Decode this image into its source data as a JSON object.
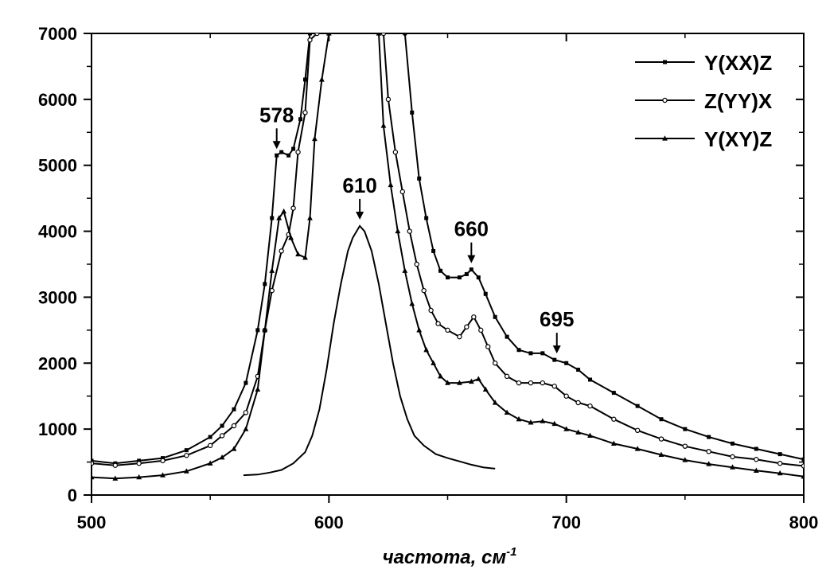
{
  "chart_data": {
    "type": "line",
    "title": "",
    "xlabel": "частота, см",
    "xlabel_sup": "-1",
    "ylabel": "",
    "xlim": [
      500,
      800
    ],
    "ylim": [
      0,
      7000
    ],
    "xticks": [
      500,
      600,
      700,
      800
    ],
    "yticks": [
      0,
      1000,
      2000,
      3000,
      4000,
      5000,
      6000,
      7000
    ],
    "grid": false,
    "legend_position": "top-right",
    "series": [
      {
        "name": "Y(XX)Z",
        "marker": "square",
        "color": "#000000",
        "points": [
          [
            500,
            520
          ],
          [
            510,
            480
          ],
          [
            520,
            520
          ],
          [
            530,
            560
          ],
          [
            540,
            680
          ],
          [
            550,
            880
          ],
          [
            555,
            1050
          ],
          [
            560,
            1300
          ],
          [
            565,
            1700
          ],
          [
            570,
            2500
          ],
          [
            573,
            3200
          ],
          [
            576,
            4200
          ],
          [
            578,
            5150
          ],
          [
            580,
            5200
          ],
          [
            583,
            5150
          ],
          [
            585,
            5250
          ],
          [
            588,
            5700
          ],
          [
            590,
            6300
          ],
          [
            592,
            7000
          ],
          [
            632,
            7000
          ],
          [
            635,
            5800
          ],
          [
            638,
            4800
          ],
          [
            641,
            4200
          ],
          [
            644,
            3700
          ],
          [
            647,
            3400
          ],
          [
            650,
            3300
          ],
          [
            655,
            3300
          ],
          [
            658,
            3350
          ],
          [
            660,
            3420
          ],
          [
            663,
            3300
          ],
          [
            666,
            3050
          ],
          [
            670,
            2700
          ],
          [
            675,
            2400
          ],
          [
            680,
            2200
          ],
          [
            685,
            2150
          ],
          [
            690,
            2150
          ],
          [
            695,
            2050
          ],
          [
            700,
            2000
          ],
          [
            705,
            1900
          ],
          [
            710,
            1750
          ],
          [
            720,
            1550
          ],
          [
            730,
            1350
          ],
          [
            740,
            1150
          ],
          [
            750,
            1000
          ],
          [
            760,
            880
          ],
          [
            770,
            780
          ],
          [
            780,
            700
          ],
          [
            790,
            620
          ],
          [
            800,
            540
          ]
        ]
      },
      {
        "name": "Z(YY)X",
        "marker": "circle",
        "color": "#000000",
        "points": [
          [
            500,
            480
          ],
          [
            510,
            450
          ],
          [
            520,
            480
          ],
          [
            530,
            520
          ],
          [
            540,
            600
          ],
          [
            550,
            750
          ],
          [
            555,
            900
          ],
          [
            560,
            1050
          ],
          [
            565,
            1250
          ],
          [
            570,
            1800
          ],
          [
            573,
            2500
          ],
          [
            576,
            3100
          ],
          [
            580,
            3700
          ],
          [
            583,
            3950
          ],
          [
            585,
            4350
          ],
          [
            587,
            5200
          ],
          [
            590,
            5800
          ],
          [
            592,
            6900
          ],
          [
            595,
            7000
          ],
          [
            623,
            7000
          ],
          [
            625,
            6000
          ],
          [
            628,
            5200
          ],
          [
            631,
            4600
          ],
          [
            634,
            4000
          ],
          [
            637,
            3500
          ],
          [
            640,
            3100
          ],
          [
            643,
            2800
          ],
          [
            646,
            2600
          ],
          [
            650,
            2500
          ],
          [
            655,
            2400
          ],
          [
            658,
            2550
          ],
          [
            661,
            2700
          ],
          [
            664,
            2500
          ],
          [
            667,
            2250
          ],
          [
            670,
            2000
          ],
          [
            675,
            1800
          ],
          [
            680,
            1700
          ],
          [
            685,
            1700
          ],
          [
            690,
            1700
          ],
          [
            695,
            1650
          ],
          [
            700,
            1500
          ],
          [
            705,
            1400
          ],
          [
            710,
            1350
          ],
          [
            720,
            1150
          ],
          [
            730,
            980
          ],
          [
            740,
            850
          ],
          [
            750,
            740
          ],
          [
            760,
            660
          ],
          [
            770,
            580
          ],
          [
            780,
            540
          ],
          [
            790,
            480
          ],
          [
            800,
            440
          ]
        ]
      },
      {
        "name": "Y(XY)Z",
        "marker": "triangle",
        "color": "#000000",
        "points": [
          [
            500,
            270
          ],
          [
            510,
            250
          ],
          [
            520,
            270
          ],
          [
            530,
            300
          ],
          [
            540,
            360
          ],
          [
            550,
            480
          ],
          [
            555,
            570
          ],
          [
            560,
            700
          ],
          [
            565,
            1000
          ],
          [
            570,
            1600
          ],
          [
            573,
            2500
          ],
          [
            576,
            3400
          ],
          [
            579,
            4200
          ],
          [
            581,
            4300
          ],
          [
            584,
            3900
          ],
          [
            587,
            3650
          ],
          [
            590,
            3600
          ],
          [
            592,
            4200
          ],
          [
            594,
            5400
          ],
          [
            597,
            6300
          ],
          [
            600,
            7000
          ],
          [
            621,
            7000
          ],
          [
            623,
            5600
          ],
          [
            626,
            4700
          ],
          [
            629,
            4000
          ],
          [
            632,
            3400
          ],
          [
            635,
            2900
          ],
          [
            638,
            2500
          ],
          [
            641,
            2200
          ],
          [
            644,
            2000
          ],
          [
            647,
            1800
          ],
          [
            650,
            1700
          ],
          [
            655,
            1700
          ],
          [
            660,
            1720
          ],
          [
            663,
            1760
          ],
          [
            666,
            1600
          ],
          [
            670,
            1400
          ],
          [
            675,
            1250
          ],
          [
            680,
            1150
          ],
          [
            685,
            1100
          ],
          [
            690,
            1120
          ],
          [
            695,
            1080
          ],
          [
            700,
            1000
          ],
          [
            705,
            950
          ],
          [
            710,
            900
          ],
          [
            720,
            780
          ],
          [
            730,
            700
          ],
          [
            740,
            610
          ],
          [
            750,
            530
          ],
          [
            760,
            470
          ],
          [
            770,
            420
          ],
          [
            780,
            370
          ],
          [
            790,
            330
          ],
          [
            800,
            280
          ]
        ]
      },
      {
        "name": "",
        "marker": "none",
        "color": "#000000",
        "points": [
          [
            564,
            300
          ],
          [
            570,
            310
          ],
          [
            575,
            340
          ],
          [
            580,
            380
          ],
          [
            585,
            480
          ],
          [
            590,
            650
          ],
          [
            593,
            900
          ],
          [
            596,
            1300
          ],
          [
            599,
            1900
          ],
          [
            602,
            2600
          ],
          [
            605,
            3200
          ],
          [
            608,
            3700
          ],
          [
            610,
            3900
          ],
          [
            613,
            4080
          ],
          [
            615,
            4000
          ],
          [
            618,
            3700
          ],
          [
            621,
            3200
          ],
          [
            624,
            2600
          ],
          [
            627,
            2000
          ],
          [
            630,
            1500
          ],
          [
            633,
            1150
          ],
          [
            636,
            900
          ],
          [
            640,
            750
          ],
          [
            645,
            620
          ],
          [
            650,
            560
          ],
          [
            655,
            510
          ],
          [
            660,
            460
          ],
          [
            665,
            420
          ],
          [
            670,
            400
          ]
        ]
      }
    ],
    "annotations": [
      {
        "label": "578",
        "x": 578,
        "y": 5150
      },
      {
        "label": "610",
        "x": 613,
        "y": 4080
      },
      {
        "label": "660",
        "x": 660,
        "y": 3420
      },
      {
        "label": "695",
        "x": 696,
        "y": 2050
      }
    ]
  }
}
